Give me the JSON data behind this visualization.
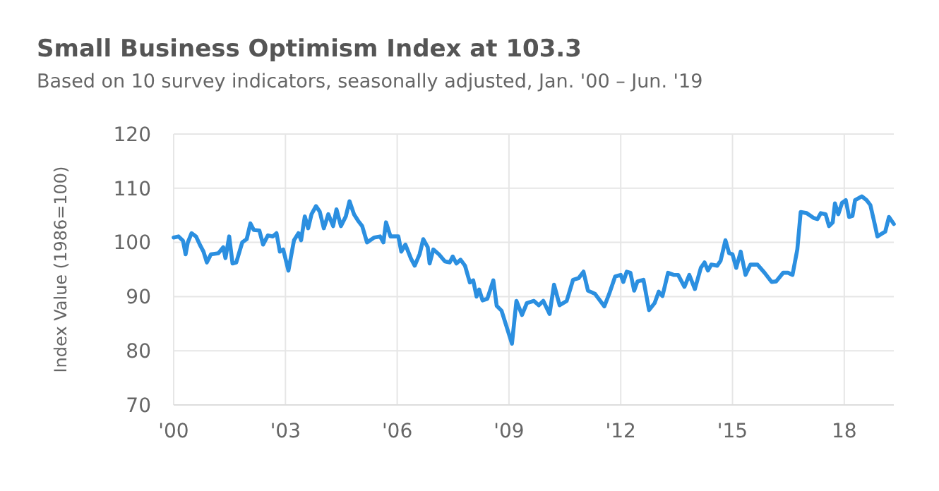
{
  "chart_data": {
    "type": "line",
    "title": "Small Business Optimism Index at 103.3",
    "subtitle": "Based on 10 survey indicators, seasonally adjusted, Jan. '00 – Jun. '19",
    "ylabel": "Index Value (1986=100)",
    "x": [
      2000.0,
      2000.13,
      2000.25,
      2000.32,
      2000.38,
      2000.48,
      2000.6,
      2000.7,
      2000.8,
      2000.89,
      2001.0,
      2001.2,
      2001.33,
      2001.39,
      2001.49,
      2001.58,
      2001.68,
      2001.84,
      2001.96,
      2002.06,
      2002.15,
      2002.3,
      2002.4,
      2002.53,
      2002.66,
      2002.76,
      2002.85,
      2002.94,
      2003.08,
      2003.23,
      2003.35,
      2003.42,
      2003.52,
      2003.61,
      2003.7,
      2003.82,
      2003.92,
      2004.03,
      2004.15,
      2004.28,
      2004.37,
      2004.49,
      2004.62,
      2004.72,
      2004.84,
      2004.96,
      2005.06,
      2005.19,
      2005.38,
      2005.54,
      2005.63,
      2005.7,
      2005.82,
      2006.03,
      2006.11,
      2006.22,
      2006.37,
      2006.47,
      2006.6,
      2006.7,
      2006.82,
      2006.87,
      2006.97,
      2007.12,
      2007.28,
      2007.41,
      2007.49,
      2007.59,
      2007.7,
      2007.82,
      2007.95,
      2008.04,
      2008.13,
      2008.2,
      2008.29,
      2008.42,
      2008.58,
      2008.67,
      2008.8,
      2009.08,
      2009.2,
      2009.35,
      2009.48,
      2009.67,
      2009.8,
      2009.92,
      2010.09,
      2010.21,
      2010.36,
      2010.55,
      2010.72,
      2010.87,
      2011.0,
      2011.12,
      2011.31,
      2011.56,
      2011.69,
      2011.85,
      2012.0,
      2012.07,
      2012.16,
      2012.26,
      2012.36,
      2012.45,
      2012.61,
      2012.76,
      2012.91,
      2013.02,
      2013.12,
      2013.27,
      2013.42,
      2013.54,
      2013.71,
      2013.84,
      2013.99,
      2014.15,
      2014.25,
      2014.34,
      2014.43,
      2014.59,
      2014.68,
      2014.81,
      2014.91,
      2015.0,
      2015.1,
      2015.22,
      2015.35,
      2015.48,
      2015.67,
      2015.86,
      2016.05,
      2016.17,
      2016.36,
      2016.49,
      2016.61,
      2016.74,
      2016.83,
      2016.99,
      2017.18,
      2017.28,
      2017.37,
      2017.5,
      2017.59,
      2017.69,
      2017.75,
      2017.84,
      2017.94,
      2018.04,
      2018.13,
      2018.22,
      2018.29,
      2018.47,
      2018.6,
      2018.7,
      2018.8,
      2018.89,
      2018.98,
      2019.1,
      2019.2,
      2019.33
    ],
    "series": [
      {
        "color": "#2b8fe0",
        "values": [
          100.9,
          101.1,
          100.3,
          97.8,
          100,
          101.7,
          101.1,
          99.6,
          98.3,
          96.3,
          97.8,
          98,
          99.1,
          97.1,
          101.1,
          96.1,
          96.3,
          100,
          100.6,
          103.5,
          102.3,
          102.2,
          99.6,
          101.3,
          101.1,
          101.7,
          98.3,
          98.7,
          94.8,
          100.4,
          101.7,
          100.4,
          104.8,
          102.6,
          105.2,
          106.7,
          105.7,
          102.6,
          105.2,
          103,
          106.1,
          103,
          104.8,
          107.6,
          105.2,
          103.9,
          103,
          100,
          100.9,
          101.1,
          100,
          103.7,
          101.1,
          101.1,
          98.3,
          99.6,
          97,
          95.7,
          97.8,
          100.6,
          99.1,
          96.1,
          98.7,
          97.8,
          96.5,
          96.3,
          97.4,
          96.1,
          96.8,
          95.7,
          92.6,
          93,
          90,
          91.3,
          89.3,
          89.6,
          93,
          88.3,
          87.4,
          81.3,
          89.2,
          86.6,
          88.8,
          89.2,
          88.4,
          89.2,
          86.8,
          92.2,
          88.4,
          89.2,
          93.1,
          93.4,
          94.6,
          91.1,
          90.5,
          88.2,
          90.5,
          93.7,
          94,
          92.7,
          94.6,
          94.4,
          91.1,
          92.8,
          93.1,
          87.5,
          88.8,
          90.9,
          90.1,
          94.4,
          94,
          94,
          91.8,
          94,
          91.4,
          95.3,
          96.3,
          94.8,
          95.9,
          95.7,
          96.6,
          100.4,
          98,
          97.8,
          95.3,
          98.3,
          94,
          95.9,
          95.9,
          94.4,
          92.7,
          92.8,
          94.4,
          94.4,
          94,
          98.7,
          105.6,
          105.4,
          104.5,
          104.3,
          105.4,
          105.2,
          103,
          103.7,
          107.2,
          105.2,
          107.3,
          107.8,
          104.7,
          104.9,
          107.8,
          108.5,
          107.8,
          106.9,
          103.9,
          101.1,
          101.5,
          102,
          104.7,
          103.4
        ]
      }
    ],
    "xlim": [
      2000,
      2019.33
    ],
    "xticks": [
      {
        "value": 2000,
        "label": "'00"
      },
      {
        "value": 2003,
        "label": "'03"
      },
      {
        "value": 2006,
        "label": "'06"
      },
      {
        "value": 2009,
        "label": "'09"
      },
      {
        "value": 2012,
        "label": "'12"
      },
      {
        "value": 2015,
        "label": "'15"
      },
      {
        "value": 2018,
        "label": "18"
      }
    ],
    "ylim": [
      70,
      120
    ],
    "yticks": [
      70,
      80,
      90,
      100,
      110,
      120
    ],
    "grid": true,
    "marker": "none",
    "line_style": "solid"
  }
}
